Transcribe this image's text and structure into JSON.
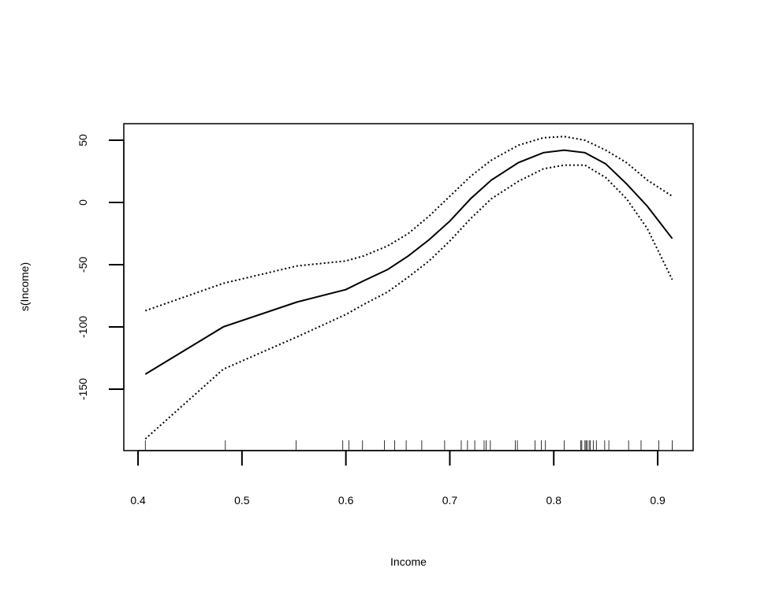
{
  "chart_data": {
    "type": "line",
    "xlabel": "Income",
    "ylabel": "s(Income)",
    "x": [
      0.407,
      0.482,
      0.553,
      0.6,
      0.617,
      0.64,
      0.66,
      0.68,
      0.7,
      0.72,
      0.74,
      0.766,
      0.79,
      0.81,
      0.83,
      0.85,
      0.87,
      0.89,
      0.914
    ],
    "series": [
      {
        "color": "#000000",
        "dash": "solid",
        "values": [
          -138,
          -100,
          -80,
          -70,
          -63,
          -54,
          -43,
          -30,
          -15,
          3,
          18,
          32,
          40,
          42,
          40,
          31,
          15,
          -3,
          -29
        ]
      },
      {
        "color": "#000000",
        "dash": "dotted",
        "values": [
          -87,
          -65,
          -51,
          -47,
          -43,
          -35,
          -25,
          -11,
          5,
          21,
          34,
          46,
          52,
          53,
          50,
          42,
          32,
          18,
          5
        ]
      },
      {
        "color": "#000000",
        "dash": "dotted",
        "values": [
          -190,
          -134,
          -108,
          -90,
          -82,
          -72,
          -60,
          -47,
          -31,
          -13,
          3,
          17,
          27,
          30,
          30,
          20,
          3,
          -21,
          -62
        ]
      }
    ],
    "rug": [
      0.407,
      0.484,
      0.552,
      0.597,
      0.603,
      0.616,
      0.637,
      0.647,
      0.658,
      0.673,
      0.695,
      0.711,
      0.717,
      0.724,
      0.733,
      0.735,
      0.739,
      0.763,
      0.765,
      0.782,
      0.788,
      0.792,
      0.81,
      0.826,
      0.827,
      0.83,
      0.831,
      0.832,
      0.834,
      0.835,
      0.838,
      0.841,
      0.849,
      0.853,
      0.872,
      0.884,
      0.901,
      0.914
    ],
    "xlim": [
      0.3863,
      0.9341
    ],
    "ylim": [
      -199.4,
      63.3
    ],
    "xticks": [
      0.4,
      0.5,
      0.6,
      0.7,
      0.8,
      0.9
    ],
    "yticks": [
      -150,
      -100,
      -50,
      0,
      50
    ]
  }
}
